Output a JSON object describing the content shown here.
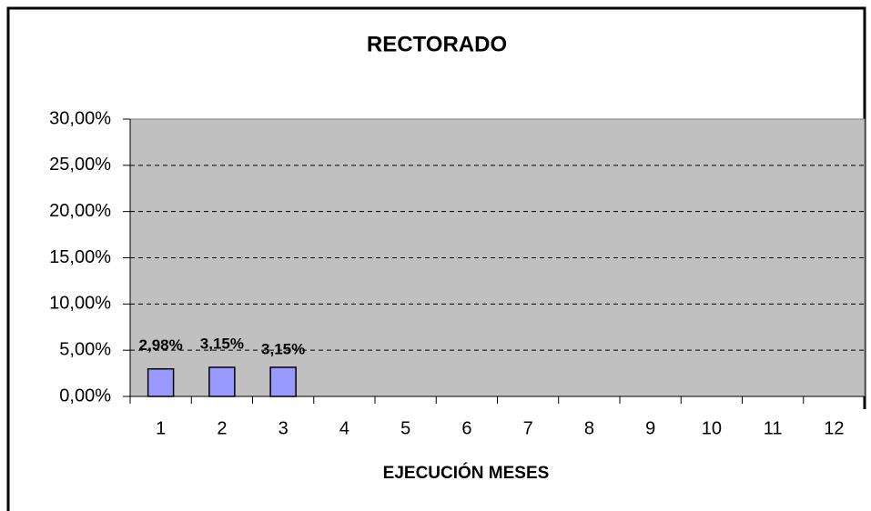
{
  "chart_data": {
    "type": "bar",
    "title": "RECTORADO",
    "x_label": "EJECUCIÓN MESES",
    "categories": [
      "1",
      "2",
      "3",
      "4",
      "5",
      "6",
      "7",
      "8",
      "9",
      "10",
      "11",
      "12"
    ],
    "values": [
      2.98,
      3.15,
      3.15,
      null,
      null,
      null,
      null,
      null,
      null,
      null,
      null,
      null
    ],
    "value_labels": [
      "2,98%",
      "3,15%",
      "3,15%",
      null,
      null,
      null,
      null,
      null,
      null,
      null,
      null,
      null
    ],
    "color": "#9999ff",
    "ylim": [
      0,
      30
    ],
    "yticks": [
      {
        "value": 0,
        "label": "0,00%"
      },
      {
        "value": 5,
        "label": "5,00%"
      },
      {
        "value": 10,
        "label": "10,00%"
      },
      {
        "value": 15,
        "label": "15,00%"
      },
      {
        "value": 20,
        "label": "20,00%"
      },
      {
        "value": 25,
        "label": "25,00%"
      },
      {
        "value": 30,
        "label": "30,00%"
      }
    ],
    "grid": true
  }
}
